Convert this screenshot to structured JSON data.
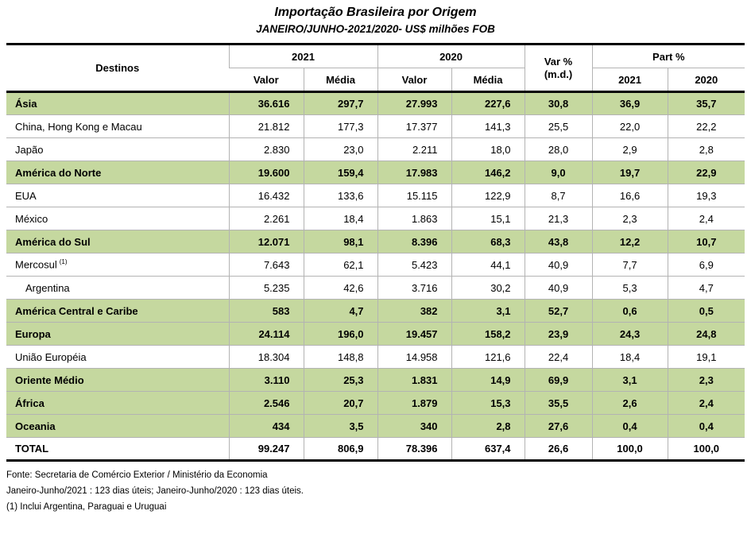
{
  "title": "Importação Brasileira por Origem",
  "subtitle": "JANEIRO/JUNHO-2021/2020- US$ milhões FOB",
  "colors": {
    "section_row_bg": "#c5d89f",
    "grid_line": "#b3b3b3",
    "heavy_border": "#000000"
  },
  "table": {
    "header": {
      "destinos": "Destinos",
      "group_2021": "2021",
      "group_2020": "2020",
      "var_line1": "Var %",
      "var_line2": "(m.d.)",
      "part": "Part %",
      "valor_2021": "Valor",
      "media_2021": "Média",
      "valor_2020": "Valor",
      "media_2020": "Média",
      "part_2021": "2021",
      "part_2020": "2020"
    },
    "rows": [
      {
        "label": "Ásia",
        "style": "section",
        "values": [
          "36.616",
          "297,7",
          "27.993",
          "227,6",
          "30,8",
          "36,9",
          "35,7"
        ]
      },
      {
        "label": "China, Hong Kong e Macau",
        "style": "item",
        "values": [
          "21.812",
          "177,3",
          "17.377",
          "141,3",
          "25,5",
          "22,0",
          "22,2"
        ]
      },
      {
        "label": "Japão",
        "style": "item",
        "values": [
          "2.830",
          "23,0",
          "2.211",
          "18,0",
          "28,0",
          "2,9",
          "2,8"
        ]
      },
      {
        "label": "América do Norte",
        "style": "section",
        "values": [
          "19.600",
          "159,4",
          "17.983",
          "146,2",
          "9,0",
          "19,7",
          "22,9"
        ]
      },
      {
        "label": "EUA",
        "style": "item",
        "values": [
          "16.432",
          "133,6",
          "15.115",
          "122,9",
          "8,7",
          "16,6",
          "19,3"
        ]
      },
      {
        "label": "México",
        "style": "item",
        "values": [
          "2.261",
          "18,4",
          "1.863",
          "15,1",
          "21,3",
          "2,3",
          "2,4"
        ]
      },
      {
        "label": "América do Sul",
        "style": "section",
        "values": [
          "12.071",
          "98,1",
          "8.396",
          "68,3",
          "43,8",
          "12,2",
          "10,7"
        ]
      },
      {
        "label": "Mercosul",
        "sup": "(1)",
        "style": "item",
        "values": [
          "7.643",
          "62,1",
          "5.423",
          "44,1",
          "40,9",
          "7,7",
          "6,9"
        ]
      },
      {
        "label": "Argentina",
        "style": "item",
        "indent": true,
        "values": [
          "5.235",
          "42,6",
          "3.716",
          "30,2",
          "40,9",
          "5,3",
          "4,7"
        ]
      },
      {
        "label": "América Central e Caribe",
        "style": "section",
        "values": [
          "583",
          "4,7",
          "382",
          "3,1",
          "52,7",
          "0,6",
          "0,5"
        ]
      },
      {
        "label": "Europa",
        "style": "section",
        "values": [
          "24.114",
          "196,0",
          "19.457",
          "158,2",
          "23,9",
          "24,3",
          "24,8"
        ]
      },
      {
        "label": "União Européia",
        "style": "item",
        "values": [
          "18.304",
          "148,8",
          "14.958",
          "121,6",
          "22,4",
          "18,4",
          "19,1"
        ]
      },
      {
        "label": "Oriente Médio",
        "style": "section",
        "values": [
          "3.110",
          "25,3",
          "1.831",
          "14,9",
          "69,9",
          "3,1",
          "2,3"
        ]
      },
      {
        "label": "África",
        "style": "section",
        "values": [
          "2.546",
          "20,7",
          "1.879",
          "15,3",
          "35,5",
          "2,6",
          "2,4"
        ]
      },
      {
        "label": "Oceania",
        "style": "section",
        "values": [
          "434",
          "3,5",
          "340",
          "2,8",
          "27,6",
          "0,4",
          "0,4"
        ]
      },
      {
        "label": "TOTAL",
        "style": "total",
        "values": [
          "99.247",
          "806,9",
          "78.396",
          "637,4",
          "26,6",
          "100,0",
          "100,0"
        ]
      }
    ]
  },
  "footer": {
    "line1": "Fonte: Secretaria de Comércio Exterior / Ministério da Economia",
    "line2": "Janeiro-Junho/2021 : 123 dias úteis; Janeiro-Junho/2020 : 123 dias úteis.",
    "line3": "(1) Inclui Argentina, Paraguai e Uruguai"
  }
}
